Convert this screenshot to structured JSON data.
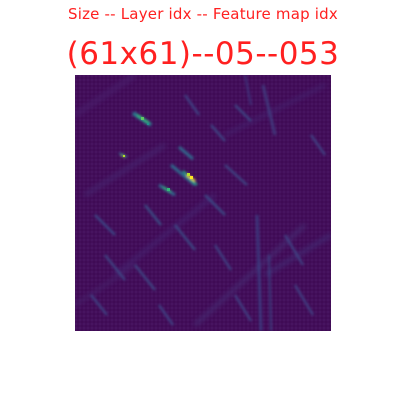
{
  "header": {
    "legend_text": "Size -- Layer idx -- Feature map idx",
    "title_text": "(61x61)--05--053"
  },
  "feature_map": {
    "size": "61x61",
    "layer_idx": "05",
    "feature_map_idx": "053",
    "colormap": "viridis"
  },
  "colors": {
    "caption_red": "#ff2020",
    "background": "#ffffff",
    "map_base": "#440f5c"
  }
}
